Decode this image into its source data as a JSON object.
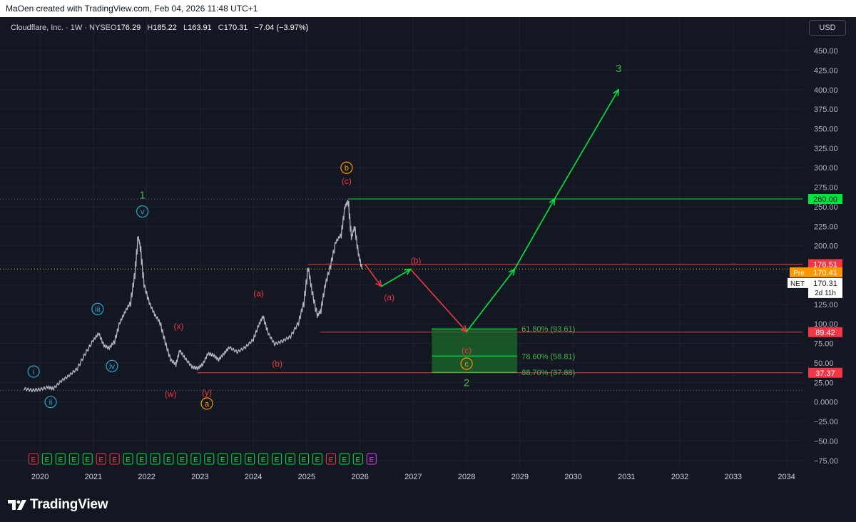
{
  "header": {
    "attribution": "MaOen created with TradingView.com, Feb 04, 2026 11:48 UTC+1",
    "symbol_line": "Cloudflare, Inc. · 1W · NYSE",
    "o_label": "O",
    "o_value": "176.29",
    "h_label": "H",
    "h_value": "185.22",
    "l_label": "L",
    "l_value": "163.91",
    "c_label": "C",
    "c_value": "170.31",
    "change": "−7.04 (−3.97%)"
  },
  "currency_button": "USD",
  "footer": {
    "brand": "TradingView"
  },
  "colors": {
    "background": "#131722",
    "candle": "#b2b5be",
    "green": "#00e640",
    "red": "#f23645",
    "cyan": "#26a9d4",
    "orange": "#ff9800",
    "label_green": "#4caf50"
  },
  "chart_data": {
    "type": "line",
    "xlabel": "",
    "ylabel": "",
    "xlim": [
      2019.45,
      2034.3
    ],
    "ylim": [
      -88,
      482
    ],
    "x_ticks": [
      "2020",
      "2021",
      "2022",
      "2023",
      "2024",
      "2025",
      "2026",
      "2027",
      "2028",
      "2029",
      "2030",
      "2031",
      "2032",
      "2033",
      "2034"
    ],
    "y_ticks": [
      "450.00",
      "425.00",
      "400.00",
      "375.00",
      "350.00",
      "325.00",
      "300.00",
      "275.00",
      "250.00",
      "225.00",
      "200.00",
      "175.00",
      "150.00",
      "125.00",
      "100.00",
      "75.00",
      "50.00",
      "25.00",
      "0.0000",
      "−25.00",
      "−50.00",
      "−75.00"
    ],
    "series": [
      {
        "name": "NET",
        "points": [
          [
            2019.7,
            17
          ],
          [
            2019.85,
            15
          ],
          [
            2020.0,
            16
          ],
          [
            2020.15,
            19
          ],
          [
            2020.25,
            17
          ],
          [
            2020.4,
            27
          ],
          [
            2020.55,
            34
          ],
          [
            2020.7,
            43
          ],
          [
            2020.85,
            62
          ],
          [
            2021.0,
            79
          ],
          [
            2021.1,
            88
          ],
          [
            2021.2,
            72
          ],
          [
            2021.3,
            69
          ],
          [
            2021.4,
            78
          ],
          [
            2021.5,
            102
          ],
          [
            2021.6,
            116
          ],
          [
            2021.7,
            128
          ],
          [
            2021.78,
            165
          ],
          [
            2021.84,
            212
          ],
          [
            2021.88,
            200
          ],
          [
            2021.95,
            150
          ],
          [
            2022.05,
            127
          ],
          [
            2022.15,
            112
          ],
          [
            2022.25,
            102
          ],
          [
            2022.35,
            76
          ],
          [
            2022.45,
            54
          ],
          [
            2022.55,
            48
          ],
          [
            2022.62,
            66
          ],
          [
            2022.72,
            56
          ],
          [
            2022.85,
            45
          ],
          [
            2022.95,
            43
          ],
          [
            2023.05,
            48
          ],
          [
            2023.15,
            62
          ],
          [
            2023.25,
            60
          ],
          [
            2023.35,
            54
          ],
          [
            2023.45,
            62
          ],
          [
            2023.55,
            70
          ],
          [
            2023.7,
            64
          ],
          [
            2023.85,
            70
          ],
          [
            2024.0,
            80
          ],
          [
            2024.1,
            98
          ],
          [
            2024.18,
            110
          ],
          [
            2024.28,
            88
          ],
          [
            2024.4,
            74
          ],
          [
            2024.55,
            78
          ],
          [
            2024.7,
            84
          ],
          [
            2024.85,
            102
          ],
          [
            2024.95,
            128
          ],
          [
            2025.03,
            172
          ],
          [
            2025.1,
            142
          ],
          [
            2025.2,
            110
          ],
          [
            2025.27,
            118
          ],
          [
            2025.35,
            150
          ],
          [
            2025.45,
            175
          ],
          [
            2025.55,
            205
          ],
          [
            2025.65,
            215
          ],
          [
            2025.72,
            250
          ],
          [
            2025.78,
            258
          ],
          [
            2025.84,
            210
          ],
          [
            2025.9,
            225
          ],
          [
            2025.97,
            190
          ],
          [
            2026.04,
            170
          ]
        ]
      }
    ],
    "projection": {
      "red_path": [
        [
          2026.1,
          176
        ],
        [
          2026.4,
          148
        ],
        [
          2026.95,
          170
        ],
        [
          2028.0,
          90
        ]
      ],
      "green_path": [
        [
          2026.4,
          148
        ],
        [
          2026.95,
          170
        ],
        [
          2028.0,
          90
        ],
        [
          2028.9,
          170
        ],
        [
          2029.65,
          260
        ],
        [
          2030.85,
          400
        ]
      ]
    },
    "horizontal_levels": [
      {
        "value": 260.0,
        "label": "260.00",
        "color": "#00e640"
      },
      {
        "value": 176.51,
        "label": "176.51",
        "color": "#f23645"
      },
      {
        "value": 89.42,
        "label": "89.42",
        "color": "#f23645"
      },
      {
        "value": 37.37,
        "label": "37.37",
        "color": "#f23645"
      }
    ],
    "fib_zone": {
      "from": 2027.35,
      "to": 2028.95,
      "top": 93.61,
      "bottom": 37.88,
      "levels": [
        {
          "value": 93.61,
          "label": "61.80% (93.61)"
        },
        {
          "value": 58.81,
          "label": "78.60% (58.81)"
        },
        {
          "value": 37.88,
          "label": "88.70% (37.88)"
        }
      ]
    },
    "price_tags": {
      "pre_label": "Pre",
      "pre_value": "170.41",
      "ticker": "NET",
      "last_value": "170.31",
      "countdown": "2d 11h"
    },
    "wave_labels": [
      {
        "text": "1",
        "x": 2021.92,
        "y": 265,
        "color": "green",
        "circle": false
      },
      {
        "text": "v",
        "x": 2021.92,
        "y": 244,
        "color": "cyan",
        "circle": true
      },
      {
        "text": "iii",
        "x": 2021.08,
        "y": 119,
        "color": "cyan",
        "circle": true
      },
      {
        "text": "iv",
        "x": 2021.35,
        "y": 46,
        "color": "cyan",
        "circle": true
      },
      {
        "text": "i",
        "x": 2019.88,
        "y": 39,
        "color": "cyan",
        "circle": true
      },
      {
        "text": "ii",
        "x": 2020.2,
        "y": 0,
        "color": "cyan",
        "circle": true
      },
      {
        "text": "(x)",
        "x": 2022.6,
        "y": 98,
        "color": "red",
        "circle": false
      },
      {
        "text": "(w)",
        "x": 2022.45,
        "y": 11,
        "color": "red",
        "circle": false
      },
      {
        "text": "(y)",
        "x": 2023.13,
        "y": 13,
        "color": "red",
        "circle": false
      },
      {
        "text": "a",
        "x": 2023.13,
        "y": -2,
        "color": "orange",
        "circle": true
      },
      {
        "text": "(a)",
        "x": 2024.1,
        "y": 140,
        "color": "red",
        "circle": false
      },
      {
        "text": "(b)",
        "x": 2024.45,
        "y": 50,
        "color": "red",
        "circle": false
      },
      {
        "text": "b",
        "x": 2025.75,
        "y": 300,
        "color": "orange",
        "circle": true
      },
      {
        "text": "(c)",
        "x": 2025.75,
        "y": 284,
        "color": "red",
        "circle": false
      },
      {
        "text": "(a)",
        "x": 2026.55,
        "y": 135,
        "color": "red",
        "circle": false
      },
      {
        "text": "(b)",
        "x": 2027.05,
        "y": 182,
        "color": "red",
        "circle": false
      },
      {
        "text": "(c)",
        "x": 2028.0,
        "y": 67,
        "color": "red",
        "circle": false
      },
      {
        "text": "c",
        "x": 2028.0,
        "y": 49,
        "color": "orange",
        "circle": true
      },
      {
        "text": "2",
        "x": 2028.0,
        "y": 25,
        "color": "green",
        "circle": false
      },
      {
        "text": "3",
        "x": 2030.85,
        "y": 427,
        "color": "green",
        "circle": false
      }
    ],
    "earnings_markers": {
      "label": "E",
      "start": 2019.87,
      "step": 0.2536,
      "colors": [
        "red",
        "green",
        "green",
        "green",
        "green",
        "red",
        "red",
        "green",
        "green",
        "green",
        "green",
        "green",
        "green",
        "green",
        "green",
        "green",
        "green",
        "green",
        "green",
        "green",
        "green",
        "green",
        "red",
        "green",
        "green",
        "purple"
      ]
    }
  }
}
